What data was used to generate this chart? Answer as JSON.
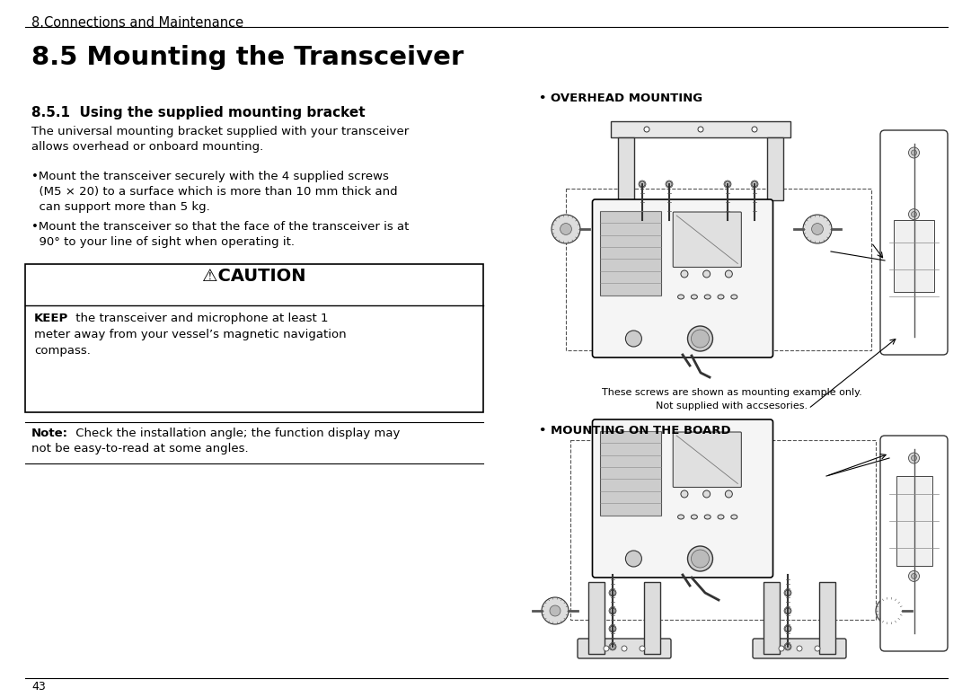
{
  "background_color": "#ffffff",
  "page_number": "43",
  "top_header": "8.Connections and Maintenance",
  "main_title": "8.5 Mounting the Transceiver",
  "section_title": "8.5.1  Using the supplied mounting bracket",
  "intro_line1": "The universal mounting bracket supplied with your transceiver",
  "intro_line2": "allows overhead or onboard mounting.",
  "bullet1_line1": "•Mount the transceiver securely with the 4 supplied screws",
  "bullet1_line2": "  (M5 × 20) to a surface which is more than 10 mm thick and",
  "bullet1_line3": "  can support more than 5 kg.",
  "bullet2_line1": "•Mount the transceiver so that the face of the transceiver is at",
  "bullet2_line2": "  90° to your line of sight when operating it.",
  "caution_title": "⚠CAUTION",
  "caution_keep": "KEEP",
  "caution_rest": " the transceiver and microphone at least 1",
  "caution_line2": "meter away from your vessel’s magnetic navigation",
  "caution_line3": "compass.",
  "note_label": "Note:",
  "note_rest": " Check the installation angle; the function display may",
  "note_line2": "not be easy-to-read at some angles.",
  "overhead_label": "• OVERHEAD MOUNTING",
  "board_label": "• MOUNTING ON THE BOARD",
  "screws_note_line1": "These screws are shown as mounting example only.",
  "screws_note_line2": "Not supplied with accsesories."
}
